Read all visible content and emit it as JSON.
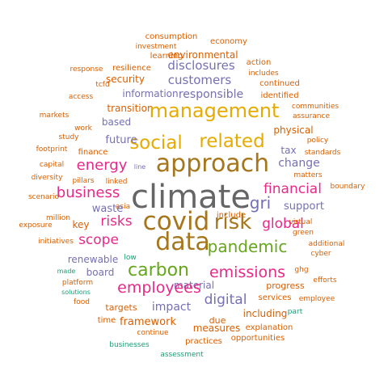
{
  "palette": {
    "orange": "#d95f02",
    "purple": "#7570b3",
    "pink": "#e7298a",
    "green": "#66a61e",
    "gold": "#e6ab02",
    "brown": "#a6761d",
    "gray": "#666666",
    "teal": "#1b9e77"
  },
  "words": [
    {
      "text": "consumption",
      "color": "orange"
    },
    {
      "text": "economy",
      "color": "orange"
    },
    {
      "text": "investment",
      "color": "orange"
    },
    {
      "text": "learning",
      "color": "orange"
    },
    {
      "text": "environmental",
      "color": "orange"
    },
    {
      "text": "action",
      "color": "orange"
    },
    {
      "text": "response",
      "color": "orange"
    },
    {
      "text": "resilience",
      "color": "orange"
    },
    {
      "text": "disclosures",
      "color": "purple"
    },
    {
      "text": "includes",
      "color": "orange"
    },
    {
      "text": "security",
      "color": "orange"
    },
    {
      "text": "customers",
      "color": "purple"
    },
    {
      "text": "continued",
      "color": "orange"
    },
    {
      "text": "tcfd",
      "color": "orange"
    },
    {
      "text": "information",
      "color": "purple"
    },
    {
      "text": "responsible",
      "color": "purple"
    },
    {
      "text": "identified",
      "color": "orange"
    },
    {
      "text": "access",
      "color": "orange"
    },
    {
      "text": "transition",
      "color": "orange"
    },
    {
      "text": "management",
      "color": "gold"
    },
    {
      "text": "communities",
      "color": "orange"
    },
    {
      "text": "markets",
      "color": "orange"
    },
    {
      "text": "assurance",
      "color": "orange"
    },
    {
      "text": "based",
      "color": "purple"
    },
    {
      "text": "work",
      "color": "orange"
    },
    {
      "text": "physical",
      "color": "orange"
    },
    {
      "text": "study",
      "color": "orange"
    },
    {
      "text": "social",
      "color": "gold"
    },
    {
      "text": "related",
      "color": "gold"
    },
    {
      "text": "policy",
      "color": "orange"
    },
    {
      "text": "future",
      "color": "purple"
    },
    {
      "text": "footprint",
      "color": "orange"
    },
    {
      "text": "tax",
      "color": "purple"
    },
    {
      "text": "standards",
      "color": "orange"
    },
    {
      "text": "finance",
      "color": "orange"
    },
    {
      "text": "capital",
      "color": "orange"
    },
    {
      "text": "energy",
      "color": "pink"
    },
    {
      "text": "approach",
      "color": "brown"
    },
    {
      "text": "change",
      "color": "purple"
    },
    {
      "text": "line",
      "color": "purple"
    },
    {
      "text": "matters",
      "color": "orange"
    },
    {
      "text": "diversity",
      "color": "orange"
    },
    {
      "text": "pillars",
      "color": "orange"
    },
    {
      "text": "linked",
      "color": "orange"
    },
    {
      "text": "boundary",
      "color": "orange"
    },
    {
      "text": "financial",
      "color": "pink"
    },
    {
      "text": "business",
      "color": "pink"
    },
    {
      "text": "climate",
      "color": "gray"
    },
    {
      "text": "scenario",
      "color": "orange"
    },
    {
      "text": "asia",
      "color": "orange"
    },
    {
      "text": "gri",
      "color": "purple"
    },
    {
      "text": "support",
      "color": "purple"
    },
    {
      "text": "waste",
      "color": "purple"
    },
    {
      "text": "million",
      "color": "orange"
    },
    {
      "text": "include",
      "color": "orange"
    },
    {
      "text": "exposure",
      "color": "orange"
    },
    {
      "text": "risks",
      "color": "pink"
    },
    {
      "text": "covid",
      "color": "brown"
    },
    {
      "text": "risk",
      "color": "brown"
    },
    {
      "text": "global",
      "color": "pink"
    },
    {
      "text": "virtual",
      "color": "orange"
    },
    {
      "text": "key",
      "color": "orange"
    },
    {
      "text": "green",
      "color": "orange"
    },
    {
      "text": "scope",
      "color": "pink"
    },
    {
      "text": "initiatives",
      "color": "orange"
    },
    {
      "text": "data",
      "color": "brown"
    },
    {
      "text": "additional",
      "color": "orange"
    },
    {
      "text": "pandemic",
      "color": "green"
    },
    {
      "text": "cyber",
      "color": "orange"
    },
    {
      "text": "renewable",
      "color": "purple"
    },
    {
      "text": "low",
      "color": "teal"
    },
    {
      "text": "made",
      "color": "teal"
    },
    {
      "text": "board",
      "color": "purple"
    },
    {
      "text": "carbon",
      "color": "green"
    },
    {
      "text": "emissions",
      "color": "pink"
    },
    {
      "text": "ghg",
      "color": "orange"
    },
    {
      "text": "platform",
      "color": "orange"
    },
    {
      "text": "efforts",
      "color": "orange"
    },
    {
      "text": "material",
      "color": "purple"
    },
    {
      "text": "solutions",
      "color": "teal"
    },
    {
      "text": "employees",
      "color": "pink"
    },
    {
      "text": "progress",
      "color": "orange"
    },
    {
      "text": "digital",
      "color": "purple"
    },
    {
      "text": "services",
      "color": "orange"
    },
    {
      "text": "employee",
      "color": "orange"
    },
    {
      "text": "food",
      "color": "orange"
    },
    {
      "text": "impact",
      "color": "purple"
    },
    {
      "text": "targets",
      "color": "orange"
    },
    {
      "text": "part",
      "color": "teal"
    },
    {
      "text": "including",
      "color": "orange"
    },
    {
      "text": "due",
      "color": "orange"
    },
    {
      "text": "time",
      "color": "orange"
    },
    {
      "text": "framework",
      "color": "orange"
    },
    {
      "text": "measures",
      "color": "orange"
    },
    {
      "text": "explanation",
      "color": "orange"
    },
    {
      "text": "continue",
      "color": "orange"
    },
    {
      "text": "practices",
      "color": "orange"
    },
    {
      "text": "opportunities",
      "color": "orange"
    },
    {
      "text": "businesses",
      "color": "teal"
    },
    {
      "text": "assessment",
      "color": "teal"
    }
  ]
}
